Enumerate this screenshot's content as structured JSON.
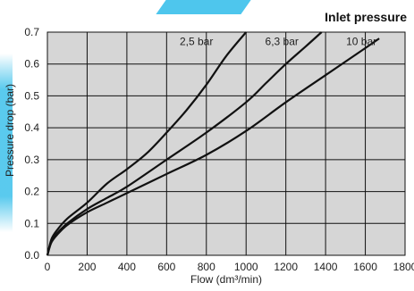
{
  "chart_data": {
    "type": "line",
    "title": "Inlet pressure",
    "xlabel": "Flow (dm³/min)",
    "ylabel": "Pressure drop (bar)",
    "xlim": [
      0,
      1800
    ],
    "ylim": [
      0,
      0.7
    ],
    "x_ticks": [
      0,
      200,
      400,
      600,
      800,
      1000,
      1200,
      1400,
      1600,
      1800
    ],
    "y_ticks": [
      "0.0",
      "0.1",
      "0.2",
      "0.3",
      "0.4",
      "0.5",
      "0.6",
      "0.7"
    ],
    "grid": true,
    "series": [
      {
        "name": "2,5 bar",
        "x": [
          0,
          20,
          50,
          100,
          200,
          300,
          400,
          500,
          600,
          700,
          800,
          900,
          1000
        ],
        "y": [
          0,
          0.05,
          0.08,
          0.115,
          0.165,
          0.225,
          0.27,
          0.32,
          0.385,
          0.455,
          0.535,
          0.625,
          0.7
        ]
      },
      {
        "name": "6,3 bar",
        "x": [
          0,
          20,
          50,
          100,
          200,
          300,
          400,
          600,
          800,
          1000,
          1100,
          1200,
          1300,
          1380
        ],
        "y": [
          0,
          0.045,
          0.07,
          0.1,
          0.145,
          0.18,
          0.215,
          0.3,
          0.385,
          0.48,
          0.54,
          0.6,
          0.655,
          0.7
        ]
      },
      {
        "name": "10 bar",
        "x": [
          0,
          20,
          50,
          100,
          200,
          300,
          400,
          600,
          800,
          1000,
          1200,
          1400,
          1600,
          1670
        ],
        "y": [
          0,
          0.04,
          0.065,
          0.095,
          0.135,
          0.165,
          0.195,
          0.255,
          0.315,
          0.39,
          0.48,
          0.565,
          0.65,
          0.68
        ]
      }
    ],
    "colors": {
      "line": "#111111",
      "plot_background": "#d6d6d6",
      "grid": "#111111",
      "decor_accent": "#22b8e8"
    }
  }
}
